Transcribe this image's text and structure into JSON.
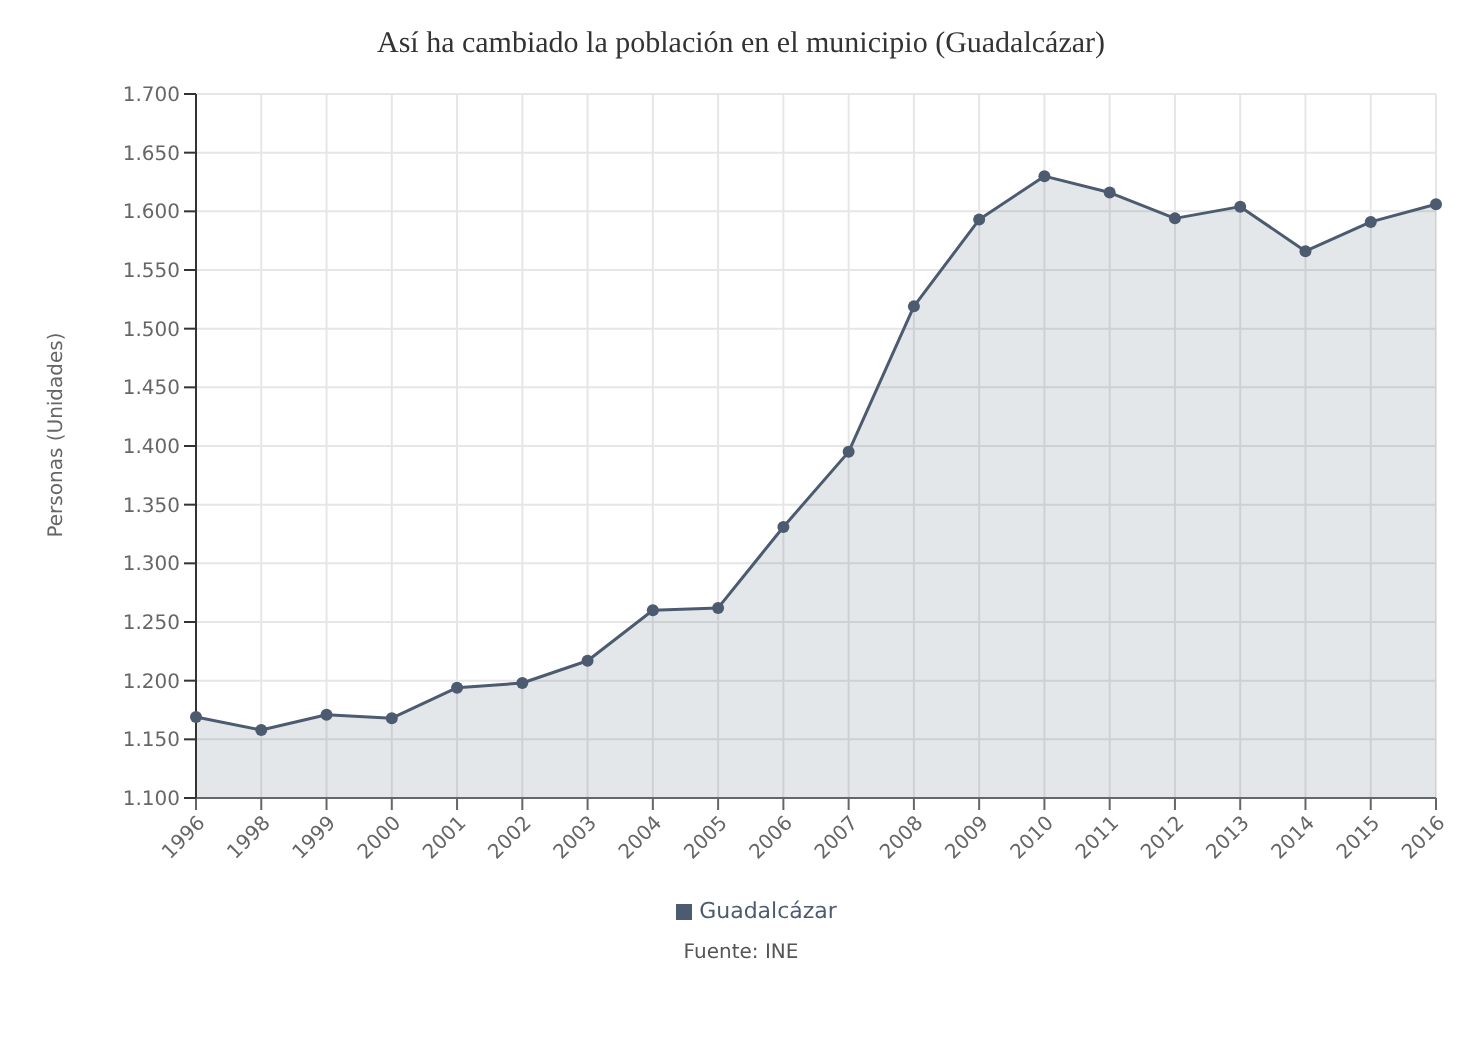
{
  "chart_data": {
    "type": "area",
    "title": "Así ha cambiado la población en el municipio (Guadalcázar)",
    "ylabel": "Personas (Unidades)",
    "categories": [
      "1996",
      "1998",
      "1999",
      "2000",
      "2001",
      "2002",
      "2003",
      "2004",
      "2005",
      "2006",
      "2007",
      "2008",
      "2009",
      "2010",
      "2011",
      "2012",
      "2013",
      "2014",
      "2015",
      "2016"
    ],
    "series": [
      {
        "name": "Guadalcázar",
        "color": "#4d5b70",
        "values": [
          1169,
          1158,
          1171,
          1168,
          1194,
          1198,
          1217,
          1260,
          1262,
          1331,
          1395,
          1519,
          1593,
          1630,
          1616,
          1594,
          1604,
          1566,
          1591,
          1606
        ]
      }
    ],
    "ylim": [
      1100,
      1700
    ],
    "yticks": [
      {
        "value": 1100,
        "label": "1.100"
      },
      {
        "value": 1150,
        "label": "1.150"
      },
      {
        "value": 1200,
        "label": "1.200"
      },
      {
        "value": 1250,
        "label": "1.250"
      },
      {
        "value": 1300,
        "label": "1.300"
      },
      {
        "value": 1350,
        "label": "1.350"
      },
      {
        "value": 1400,
        "label": "1.400"
      },
      {
        "value": 1450,
        "label": "1.450"
      },
      {
        "value": 1500,
        "label": "1.500"
      },
      {
        "value": 1550,
        "label": "1.550"
      },
      {
        "value": 1600,
        "label": "1.600"
      },
      {
        "value": 1650,
        "label": "1.650"
      },
      {
        "value": 1700,
        "label": "1.700"
      }
    ],
    "grid": true,
    "legend": "bottom",
    "marker": "circle",
    "annotations": [
      "Fuente: INE"
    ]
  }
}
